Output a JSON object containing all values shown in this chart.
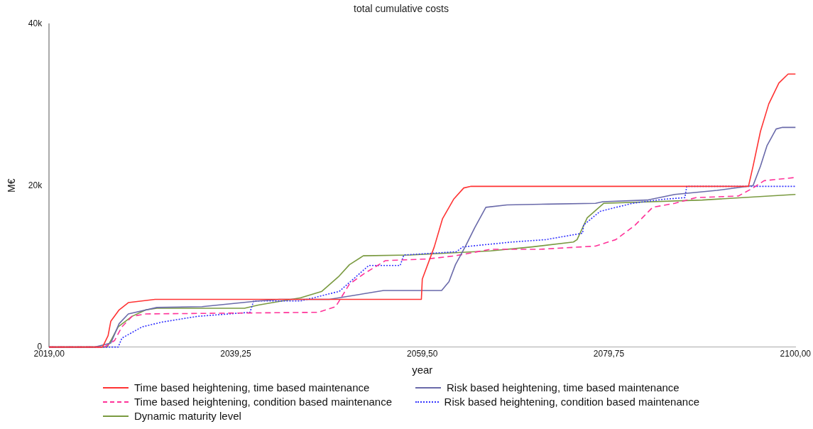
{
  "chart_data": {
    "type": "line",
    "title": "total cumulative costs",
    "xlabel": "year",
    "ylabel": "M€",
    "xlim": [
      2019,
      2100
    ],
    "xticks": [
      {
        "value": 2019,
        "label": "2019,00"
      },
      {
        "value": 2039.25,
        "label": "2039,25"
      },
      {
        "value": 2059.5,
        "label": "2059,50"
      },
      {
        "value": 2079.75,
        "label": "2079,75"
      },
      {
        "value": 2100,
        "label": "2100,00"
      }
    ],
    "ylim": [
      0,
      40000
    ],
    "yticks": [
      0,
      {
        "value": 20000,
        "label": "20k"
      },
      {
        "value": 40000,
        "label": "40k"
      }
    ],
    "grid": false,
    "legend": "bottom",
    "marker": "none",
    "series": [
      {
        "name": "Time based heightening, time based maintenance",
        "color": "#ff3333",
        "line_style": "solid",
        "x": [
          2019,
          2024.8,
          2025.4,
          2025.7,
          2026.6,
          2027.6,
          2030.5,
          2059.4,
          2059.5,
          2060.8,
          2061.7,
          2062.9,
          2064.0,
          2064.8,
          2094.9,
          2095.4,
          2096.2,
          2097.1,
          2098.2,
          2099.2,
          2100
        ],
        "values": [
          0,
          0,
          1400,
          3200,
          4600,
          5500,
          5900,
          5900,
          8400,
          12400,
          15900,
          18300,
          19700,
          19900,
          19900,
          22400,
          26700,
          30100,
          32700,
          33800,
          33800
        ]
      },
      {
        "name": "Risk based heightening, time based maintenance",
        "color": "#6a6aaa",
        "line_style": "solid",
        "x": [
          2019,
          2024.0,
          2025.7,
          2026.6,
          2027.6,
          2030.7,
          2035.6,
          2041.7,
          2044.0,
          2049.4,
          2055.3,
          2061.6,
          2062.4,
          2063.1,
          2064.2,
          2065.2,
          2066.4,
          2068.7,
          2073.2,
          2078.3,
          2079.1,
          2083.9,
          2086.9,
          2091.5,
          2095.4,
          2096.2,
          2096.9,
          2097.9,
          2098.6,
          2100
        ],
        "values": [
          0,
          0,
          500,
          2900,
          4100,
          4900,
          5000,
          5700,
          5900,
          5900,
          7000,
          7000,
          8100,
          10200,
          12500,
          14800,
          17300,
          17600,
          17700,
          17800,
          18000,
          18200,
          18900,
          19400,
          20000,
          22400,
          24900,
          27000,
          27200,
          27200
        ]
      },
      {
        "name": "Time based heightening, condition based maintenance",
        "color": "#ff3399",
        "line_style": "dashed",
        "x": [
          2019,
          2025.0,
          2026.1,
          2026.9,
          2028.0,
          2029.5,
          2048.2,
          2050.1,
          2051.6,
          2053.2,
          2055.5,
          2060.0,
          2063.1,
          2066.9,
          2072.2,
          2078.3,
          2080.5,
          2082.6,
          2084.5,
          2086.9,
          2089.2,
          2093.8,
          2095.4,
          2096.6,
          2100
        ],
        "values": [
          0,
          0,
          800,
          2500,
          3800,
          4100,
          4300,
          5000,
          7800,
          9100,
          10700,
          10900,
          11300,
          12100,
          12100,
          12500,
          13300,
          15100,
          17300,
          17800,
          18500,
          18700,
          19700,
          20600,
          21000
        ]
      },
      {
        "name": "Risk based heightening, condition based maintenance",
        "color": "#3333ff",
        "line_style": "dotted",
        "x": [
          2019,
          2026.5,
          2026.9,
          2029.1,
          2031.3,
          2035.1,
          2040.8,
          2041.2,
          2046.3,
          2050.5,
          2052.0,
          2053.7,
          2057.1,
          2057.5,
          2063.2,
          2063.9,
          2069.2,
          2072.9,
          2076.9,
          2077.0,
          2078.8,
          2082.3,
          2085.7,
          2088.0,
          2088.2,
          2100
        ],
        "values": [
          0,
          0,
          1100,
          2500,
          3100,
          3800,
          4300,
          5700,
          5700,
          6900,
          8400,
          10100,
          10100,
          11400,
          11800,
          12400,
          13000,
          13300,
          14100,
          15100,
          16800,
          17800,
          18300,
          18500,
          19900,
          19900
        ]
      },
      {
        "name": "Dynamic maturity level",
        "color": "#7a9a40",
        "line_style": "solid",
        "x": [
          2019,
          2025.3,
          2025.7,
          2026.5,
          2028.0,
          2029.5,
          2030.7,
          2040.2,
          2041.7,
          2046.3,
          2048.6,
          2050.4,
          2051.6,
          2053.1,
          2058.2,
          2066.9,
          2071.4,
          2075.9,
          2076.3,
          2077.4,
          2079.2,
          2089.9,
          2100
        ],
        "values": [
          0,
          0,
          800,
          2500,
          3800,
          4600,
          4800,
          4800,
          5200,
          6100,
          6900,
          8700,
          10200,
          11300,
          11400,
          11900,
          12400,
          13000,
          13300,
          16000,
          17800,
          18200,
          18900
        ]
      }
    ]
  }
}
